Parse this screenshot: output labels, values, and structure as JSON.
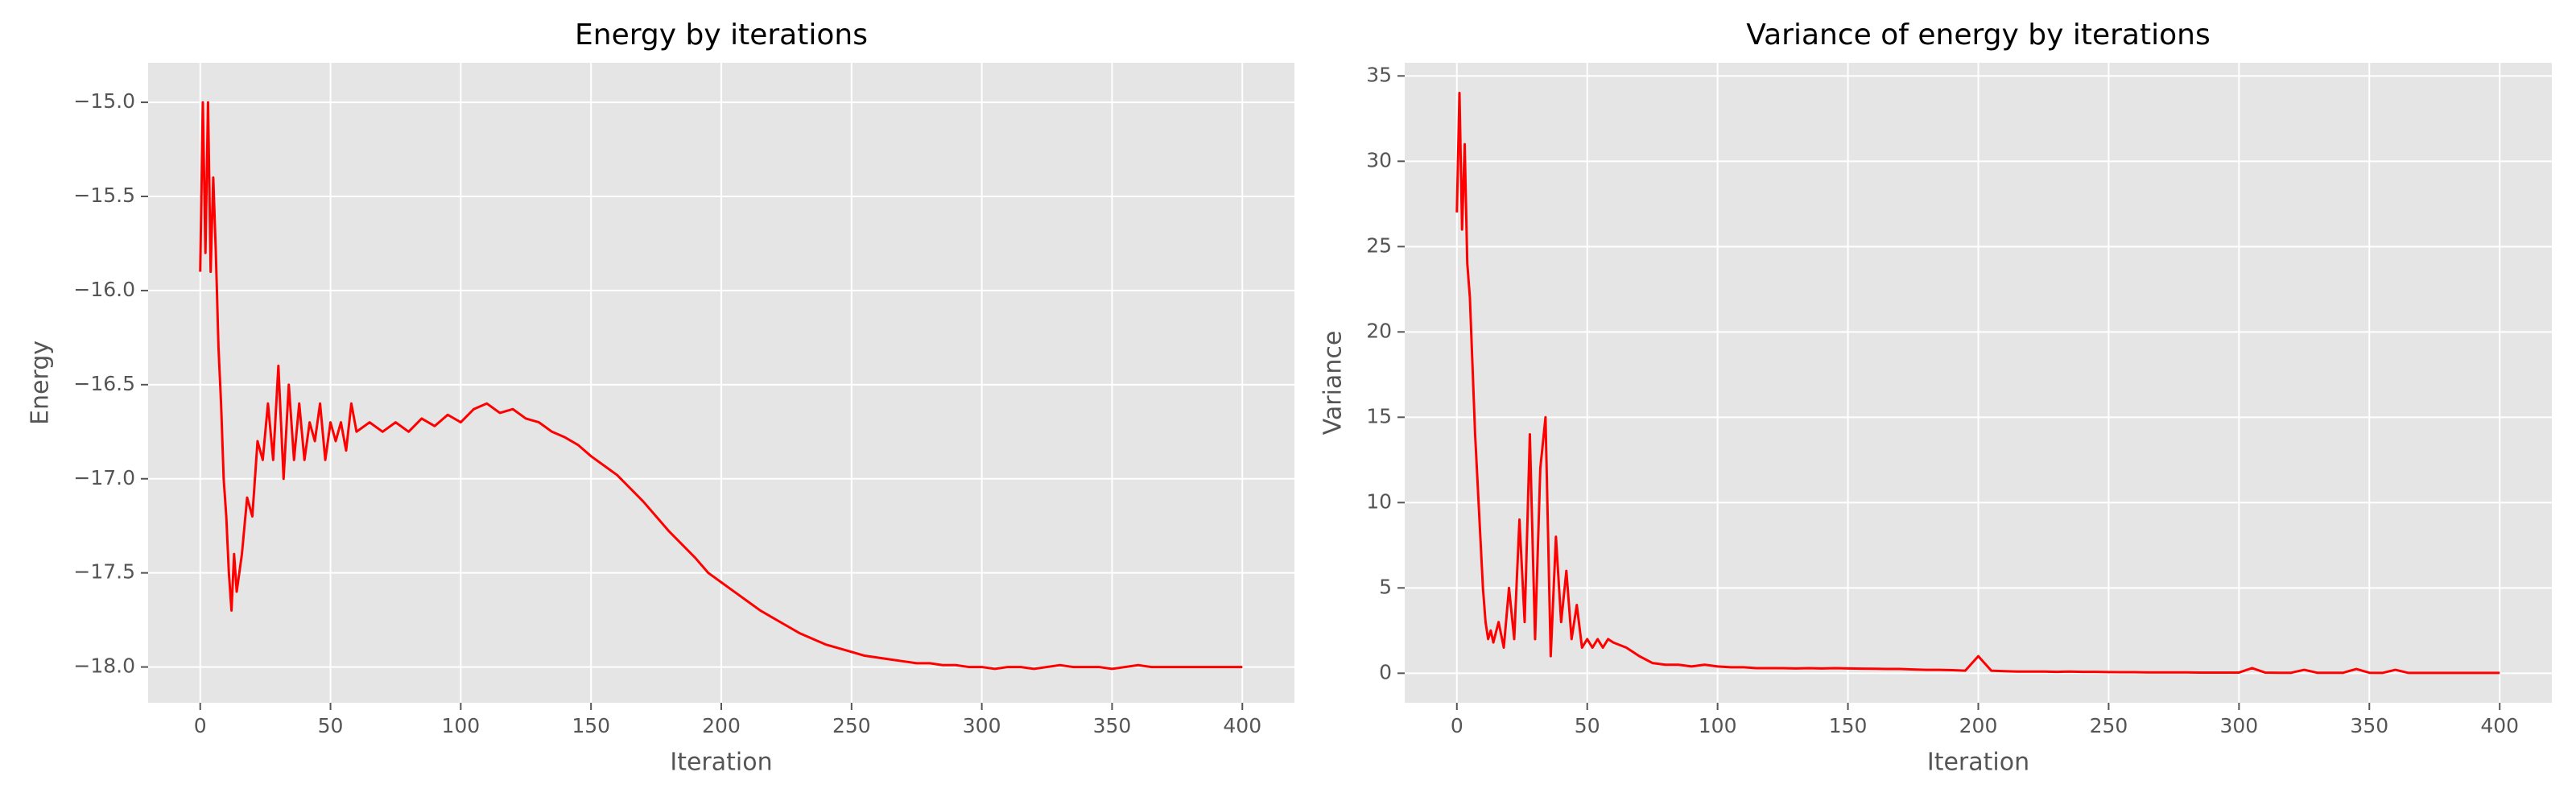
{
  "chart_data": [
    {
      "type": "line",
      "title": "Energy by iterations",
      "x_label": "Iteration",
      "y_label": "Energy",
      "grid": true,
      "xlim": [
        -20,
        420
      ],
      "ylim": [
        -18.19,
        -14.79
      ],
      "xticks": [
        0,
        50,
        100,
        150,
        200,
        250,
        300,
        350,
        400
      ],
      "yticks": [
        {
          "value": -18.0,
          "label": "−18.0"
        },
        {
          "value": -17.5,
          "label": "−17.5"
        },
        {
          "value": -17.0,
          "label": "−17.0"
        },
        {
          "value": -16.5,
          "label": "−16.5"
        },
        {
          "value": -16.0,
          "label": "−16.0"
        },
        {
          "value": -15.5,
          "label": "−15.5"
        },
        {
          "value": -15.0,
          "label": "−15.0"
        }
      ],
      "x": [
        0,
        1,
        2,
        3,
        4,
        5,
        6,
        7,
        8,
        9,
        10,
        11,
        12,
        13,
        14,
        16,
        18,
        20,
        22,
        24,
        26,
        28,
        30,
        32,
        34,
        36,
        38,
        40,
        42,
        44,
        46,
        48,
        50,
        52,
        54,
        56,
        58,
        60,
        65,
        70,
        75,
        80,
        85,
        90,
        95,
        100,
        105,
        110,
        115,
        120,
        125,
        130,
        135,
        140,
        145,
        150,
        155,
        160,
        165,
        170,
        175,
        180,
        185,
        190,
        195,
        200,
        205,
        210,
        215,
        220,
        225,
        230,
        235,
        240,
        245,
        250,
        255,
        260,
        265,
        270,
        275,
        280,
        285,
        290,
        295,
        300,
        305,
        310,
        315,
        320,
        325,
        330,
        335,
        340,
        345,
        350,
        355,
        360,
        365,
        370,
        375,
        380,
        385,
        390,
        395,
        400
      ],
      "series": [
        {
          "color": "#ff0000",
          "values": [
            -15.9,
            -15.0,
            -15.8,
            -15.0,
            -15.9,
            -15.4,
            -15.8,
            -16.3,
            -16.6,
            -17.0,
            -17.2,
            -17.5,
            -17.7,
            -17.4,
            -17.6,
            -17.4,
            -17.1,
            -17.2,
            -16.8,
            -16.9,
            -16.6,
            -16.9,
            -16.4,
            -17.0,
            -16.5,
            -16.9,
            -16.6,
            -16.9,
            -16.7,
            -16.8,
            -16.6,
            -16.9,
            -16.7,
            -16.8,
            -16.7,
            -16.85,
            -16.6,
            -16.75,
            -16.7,
            -16.75,
            -16.7,
            -16.75,
            -16.68,
            -16.72,
            -16.66,
            -16.7,
            -16.63,
            -16.6,
            -16.65,
            -16.63,
            -16.68,
            -16.7,
            -16.75,
            -16.78,
            -16.82,
            -16.88,
            -16.93,
            -16.98,
            -17.05,
            -17.12,
            -17.2,
            -17.28,
            -17.35,
            -17.42,
            -17.5,
            -17.55,
            -17.6,
            -17.65,
            -17.7,
            -17.74,
            -17.78,
            -17.82,
            -17.85,
            -17.88,
            -17.9,
            -17.92,
            -17.94,
            -17.95,
            -17.96,
            -17.97,
            -17.98,
            -17.98,
            -17.99,
            -17.99,
            -18.0,
            -18.0,
            -18.01,
            -18.0,
            -18.0,
            -18.01,
            -18.0,
            -17.99,
            -18.0,
            -18.0,
            -18.0,
            -18.01,
            -18.0,
            -17.99,
            -18.0,
            -18.0,
            -18.0,
            -18.0,
            -18.0,
            -18.0,
            -18.0,
            -18.0
          ]
        }
      ]
    },
    {
      "type": "line",
      "title": "Variance of energy by iterations",
      "x_label": "Iteration",
      "y_label": "Variance",
      "grid": true,
      "xlim": [
        -20,
        420
      ],
      "ylim": [
        -1.73,
        35.77
      ],
      "xticks": [
        0,
        50,
        100,
        150,
        200,
        250,
        300,
        350,
        400
      ],
      "yticks": [
        0,
        5,
        10,
        15,
        20,
        25,
        30,
        35
      ],
      "x": [
        0,
        1,
        2,
        3,
        4,
        5,
        6,
        7,
        8,
        9,
        10,
        11,
        12,
        13,
        14,
        16,
        18,
        20,
        22,
        24,
        26,
        28,
        30,
        32,
        34,
        36,
        38,
        40,
        42,
        44,
        46,
        48,
        50,
        52,
        54,
        56,
        58,
        60,
        65,
        70,
        75,
        80,
        85,
        90,
        95,
        100,
        105,
        110,
        115,
        120,
        125,
        130,
        135,
        140,
        145,
        150,
        155,
        160,
        165,
        170,
        175,
        180,
        185,
        190,
        195,
        200,
        205,
        210,
        215,
        220,
        225,
        230,
        235,
        240,
        245,
        250,
        255,
        260,
        265,
        270,
        275,
        280,
        285,
        290,
        295,
        300,
        305,
        310,
        315,
        320,
        325,
        330,
        335,
        340,
        345,
        350,
        355,
        360,
        365,
        370,
        375,
        380,
        385,
        390,
        395,
        400
      ],
      "series": [
        {
          "color": "#ff0000",
          "values": [
            27,
            34,
            26,
            31,
            24,
            22,
            18,
            14,
            11,
            8,
            5,
            3,
            2,
            2.5,
            1.8,
            3,
            1.5,
            5,
            2,
            9,
            3,
            14,
            2,
            12,
            15,
            1,
            8,
            3,
            6,
            2,
            4,
            1.5,
            2,
            1.5,
            2,
            1.5,
            2,
            1.8,
            1.5,
            1,
            0.6,
            0.5,
            0.5,
            0.4,
            0.5,
            0.4,
            0.35,
            0.35,
            0.3,
            0.3,
            0.3,
            0.28,
            0.3,
            0.28,
            0.3,
            0.28,
            0.27,
            0.26,
            0.25,
            0.25,
            0.22,
            0.2,
            0.2,
            0.18,
            0.15,
            1.0,
            0.15,
            0.12,
            0.1,
            0.1,
            0.1,
            0.08,
            0.1,
            0.08,
            0.08,
            0.07,
            0.06,
            0.06,
            0.05,
            0.05,
            0.05,
            0.05,
            0.04,
            0.04,
            0.04,
            0.04,
            0.3,
            0.04,
            0.03,
            0.03,
            0.2,
            0.03,
            0.03,
            0.03,
            0.25,
            0.03,
            0.02,
            0.2,
            0.02,
            0.02,
            0.02,
            0.02,
            0.02,
            0.02,
            0.02,
            0.02
          ]
        }
      ]
    }
  ]
}
